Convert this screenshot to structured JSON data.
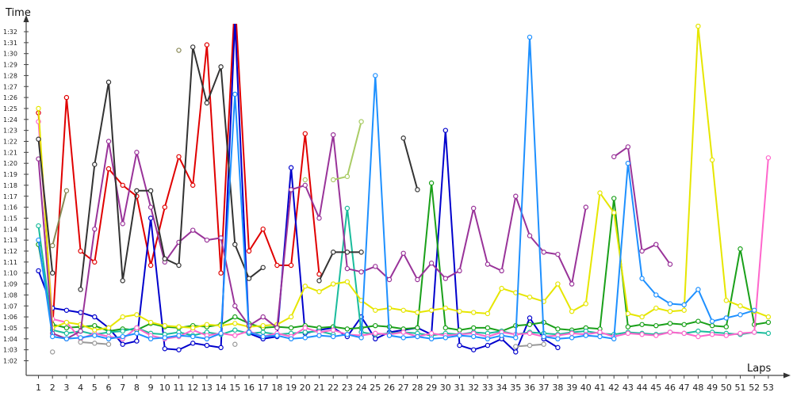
{
  "chart_data": {
    "type": "line",
    "ylabel": "Time",
    "xlabel": "Laps",
    "x": [
      1,
      2,
      3,
      4,
      5,
      6,
      7,
      8,
      9,
      10,
      11,
      12,
      13,
      14,
      15,
      16,
      17,
      18,
      19,
      20,
      21,
      22,
      23,
      24,
      25,
      26,
      27,
      28,
      29,
      30,
      31,
      32,
      33,
      34,
      35,
      36,
      37,
      38,
      39,
      40,
      41,
      42,
      43,
      44,
      45,
      46,
      47,
      48,
      49,
      50,
      51,
      52,
      53
    ],
    "y_ticks": [
      "1:02",
      "1:03",
      "1:04",
      "1:05",
      "1:06",
      "1:07",
      "1:08",
      "1:09",
      "1:10",
      "1:11",
      "1:12",
      "1:13",
      "1:14",
      "1:15",
      "1:16",
      "1:17",
      "1:18",
      "1:19",
      "1:20",
      "1:21",
      "1:22",
      "1:23",
      "1:24",
      "1:25",
      "1:26",
      "1:27",
      "1:28",
      "1:29",
      "1:30",
      "1:31",
      "1:32"
    ],
    "ylim": [
      61,
      93
    ],
    "xlim": [
      0,
      54
    ],
    "grid": false,
    "series": [
      {
        "color": "#e00000",
        "values": [
          84.6,
          65.0,
          86.0,
          72.0,
          71.0,
          79.5,
          78.0,
          77.0,
          70.7,
          76.0,
          80.6,
          78.0,
          90.8,
          70.0,
          95.0,
          72.0,
          74.0,
          70.7,
          70.7,
          82.7,
          69.9,
          null,
          null,
          null,
          null,
          null,
          null,
          null,
          null,
          null,
          null,
          null,
          null,
          null,
          null,
          null,
          null,
          null,
          null,
          null,
          null,
          null,
          null,
          null,
          null,
          null,
          null,
          null,
          null,
          null,
          null,
          null,
          null
        ]
      },
      {
        "color": "#0000cc",
        "values": [
          70.2,
          66.8,
          66.6,
          66.4,
          66.0,
          65.0,
          63.5,
          63.8,
          75.0,
          63.1,
          63.0,
          63.6,
          63.4,
          63.2,
          93.0,
          64.5,
          64.0,
          64.2,
          79.6,
          64.5,
          64.8,
          65.0,
          64.2,
          66.0,
          64.0,
          64.6,
          64.8,
          65.0,
          64.4,
          83.0,
          63.4,
          63.0,
          63.4,
          64.0,
          62.8,
          65.9,
          64.0,
          63.2,
          null,
          null,
          null,
          null,
          null,
          null,
          null,
          null,
          null,
          null,
          null,
          null,
          null,
          null,
          null
        ]
      },
      {
        "color": "#1aa01a",
        "values": [
          72.6,
          65.3,
          65.0,
          65.1,
          65.2,
          64.7,
          64.9,
          64.8,
          65.4,
          65.1,
          65.0,
          65.2,
          65.1,
          65.3,
          66.0,
          65.4,
          65.0,
          65.1,
          65.0,
          65.2,
          65.0,
          65.1,
          64.9,
          65.0,
          65.2,
          65.1,
          64.9,
          65.0,
          78.2,
          65.0,
          64.8,
          65.0,
          65.0,
          64.7,
          65.2,
          65.3,
          65.5,
          64.9,
          64.8,
          65.0,
          64.9,
          76.8,
          65.1,
          65.3,
          65.2,
          65.4,
          65.3,
          65.6,
          65.2,
          65.1,
          72.2,
          65.3,
          65.5
        ]
      },
      {
        "color": "#1abc9c",
        "values": [
          74.3,
          64.8,
          64.5,
          64.7,
          64.4,
          64.6,
          64.7,
          65.0,
          64.5,
          64.4,
          64.6,
          64.3,
          64.6,
          64.4,
          64.8,
          64.5,
          64.6,
          64.4,
          64.5,
          64.6,
          64.7,
          64.4,
          75.9,
          64.6,
          64.4,
          64.5,
          64.6,
          64.5,
          64.3,
          64.5,
          64.4,
          64.6,
          64.5,
          64.7,
          64.4,
          64.6,
          64.5,
          64.4,
          64.6,
          64.7,
          64.5,
          64.4,
          64.6,
          64.5,
          64.4,
          64.6,
          64.5,
          64.7,
          64.6,
          64.5,
          64.4,
          64.6,
          64.5
        ]
      },
      {
        "color": "#ff66cc",
        "values": [
          83.8,
          65.8,
          65.5,
          64.0,
          64.5,
          64.2,
          64.0,
          65.0,
          64.3,
          64.0,
          64.2,
          64.8,
          64.3,
          64.5,
          64.3,
          64.7,
          64.2,
          64.5,
          64.2,
          65.0,
          64.6,
          64.8,
          64.4,
          64.3,
          64.5,
          64.4,
          64.6,
          64.2,
          64.5,
          64.3,
          64.4,
          64.5,
          64.2,
          64.6,
          64.4,
          64.5,
          64.2,
          64.3,
          64.5,
          64.4,
          64.6,
          64.2,
          64.5,
          64.4,
          64.3,
          64.6,
          64.5,
          64.2,
          64.4,
          64.3,
          64.5,
          64.6,
          80.5
        ]
      },
      {
        "color": "#e6e600",
        "values": [
          85.0,
          65.0,
          65.5,
          65.3,
          64.8,
          65.0,
          66.0,
          66.2,
          65.5,
          65.2,
          65.1,
          65.0,
          65.3,
          65.2,
          65.4,
          65.1,
          65.2,
          65.3,
          66.0,
          68.8,
          68.3,
          69.0,
          69.2,
          67.5,
          66.6,
          66.8,
          66.6,
          66.4,
          66.6,
          66.8,
          66.5,
          66.4,
          66.3,
          68.6,
          68.2,
          67.8,
          67.4,
          69.0,
          66.5,
          67.2,
          77.3,
          75.5,
          66.3,
          66.0,
          66.8,
          66.5,
          66.6,
          92.5,
          80.3,
          67.5,
          67.0,
          66.5,
          66.0
        ]
      },
      {
        "color": "#993399",
        "values": [
          80.4,
          64.5,
          64.0,
          64.7,
          74.0,
          82.0,
          74.5,
          81.0,
          76.0,
          71.0,
          72.8,
          73.9,
          73.0,
          73.2,
          67.0,
          65.2,
          66.0,
          65.0,
          77.6,
          78.0,
          75.0,
          82.6,
          70.4,
          70.1,
          70.6,
          69.4,
          71.8,
          69.4,
          70.9,
          69.5,
          70.2,
          75.9,
          70.8,
          70.2,
          77.0,
          73.4,
          71.9,
          71.7,
          69.0,
          76.0,
          null,
          80.6,
          81.5,
          72.0,
          72.6,
          70.8,
          null,
          null,
          null,
          null,
          null,
          null,
          null
        ]
      },
      {
        "color": "#333333",
        "values": [
          82.2,
          70.0,
          null,
          68.5,
          79.9,
          87.4,
          69.3,
          77.5,
          77.5,
          71.3,
          70.7,
          90.6,
          85.5,
          88.8,
          72.6,
          69.5,
          70.5,
          null,
          null,
          null,
          69.3,
          71.9,
          71.9,
          71.9,
          null,
          null,
          82.3,
          77.6,
          null,
          null,
          null,
          null,
          null,
          null,
          null,
          null,
          null,
          null,
          null,
          null,
          null,
          null,
          null,
          null,
          null,
          null,
          null,
          null,
          null,
          null,
          null,
          null,
          null
        ]
      },
      {
        "color": "#888855",
        "values": [
          null,
          72.5,
          77.5,
          null,
          null,
          null,
          null,
          null,
          null,
          null,
          90.3,
          null,
          null,
          null,
          null,
          null,
          null,
          null,
          null,
          null,
          null,
          null,
          null,
          null,
          null,
          null,
          null,
          null,
          null,
          null,
          null,
          null,
          null,
          null,
          null,
          null,
          null,
          null,
          null,
          null,
          null,
          null,
          null,
          null,
          null,
          null,
          null,
          null,
          null,
          null,
          null,
          null,
          null
        ]
      },
      {
        "color": "#aacc66",
        "values": [
          null,
          null,
          null,
          null,
          null,
          null,
          null,
          null,
          null,
          null,
          null,
          null,
          null,
          null,
          null,
          null,
          null,
          null,
          null,
          78.5,
          null,
          78.5,
          78.8,
          83.8,
          null,
          null,
          null,
          null,
          null,
          null,
          null,
          null,
          null,
          null,
          null,
          null,
          null,
          null,
          null,
          null,
          null,
          null,
          null,
          null,
          null,
          null,
          null,
          null,
          null,
          null,
          null,
          null,
          null
        ]
      },
      {
        "color": "#1e90ff",
        "values": [
          73.0,
          64.2,
          64.0,
          64.1,
          64.3,
          64.0,
          64.2,
          64.5,
          64.0,
          64.1,
          64.3,
          64.2,
          64.0,
          64.5,
          86.3,
          64.6,
          64.2,
          64.3,
          64.0,
          64.1,
          64.3,
          64.2,
          64.4,
          64.1,
          88.0,
          64.3,
          64.1,
          64.2,
          64.0,
          64.1,
          64.3,
          64.2,
          64.0,
          64.3,
          64.1,
          91.5,
          64.2,
          64.0,
          64.1,
          64.3,
          64.2,
          64.0,
          80.0,
          69.5,
          68.0,
          67.2,
          67.1,
          68.5,
          65.6,
          65.9,
          66.2,
          66.6,
          null
        ]
      },
      {
        "color": "#999999",
        "values": [
          null,
          62.8,
          null,
          63.7,
          63.6,
          63.5,
          null,
          null,
          null,
          null,
          null,
          null,
          null,
          null,
          63.5,
          null,
          null,
          null,
          null,
          null,
          null,
          null,
          null,
          null,
          null,
          null,
          null,
          null,
          null,
          null,
          null,
          null,
          null,
          null,
          63.3,
          63.4,
          63.5,
          null,
          null,
          null,
          null,
          null,
          null,
          null,
          null,
          null,
          null,
          null,
          null,
          null,
          null,
          null,
          null
        ]
      }
    ]
  }
}
